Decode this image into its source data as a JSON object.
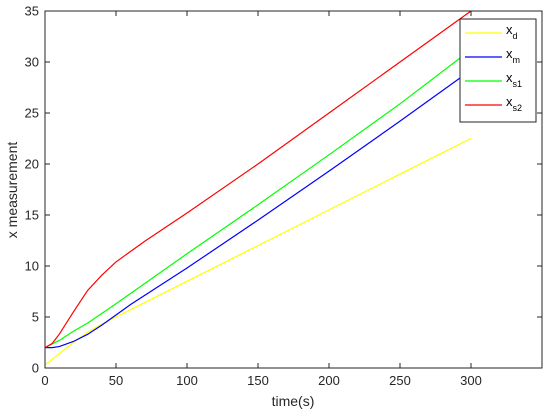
{
  "chart_data": {
    "type": "line",
    "xlabel": "time(s)",
    "ylabel": "x measurement",
    "xlim": [
      0,
      350
    ],
    "ylim": [
      0,
      35
    ],
    "xticks": [
      0,
      50,
      100,
      150,
      200,
      250,
      300
    ],
    "yticks": [
      0,
      5,
      10,
      15,
      20,
      25,
      30,
      35
    ],
    "grid": false,
    "legend_position": "top-right",
    "series": [
      {
        "name": "x_d",
        "label_main": "x",
        "label_sub": "d",
        "color": "#ffff00",
        "x": [
          0,
          10,
          20,
          30,
          40,
          50,
          60,
          80,
          100,
          150,
          200,
          250,
          300
        ],
        "y": [
          0.3,
          1.4,
          2.5,
          3.5,
          4.3,
          5.0,
          5.7,
          7.1,
          8.5,
          12.0,
          15.5,
          19.0,
          22.5
        ]
      },
      {
        "name": "x_m",
        "label_main": "x",
        "label_sub": "m",
        "color": "#0000ff",
        "x": [
          0,
          5,
          10,
          20,
          30,
          40,
          50,
          60,
          80,
          100,
          150,
          200,
          250,
          300
        ],
        "y": [
          2.0,
          2.0,
          2.1,
          2.6,
          3.3,
          4.2,
          5.2,
          6.2,
          8.0,
          9.8,
          14.5,
          19.3,
          24.2,
          29.2
        ]
      },
      {
        "name": "x_s1",
        "label_main": "x",
        "label_sub": "s1",
        "color": "#00ff00",
        "x": [
          0,
          10,
          20,
          30,
          50,
          100,
          150,
          200,
          250,
          300
        ],
        "y": [
          2.0,
          2.7,
          3.6,
          4.4,
          6.3,
          11.2,
          16.0,
          20.9,
          25.9,
          31.2
        ]
      },
      {
        "name": "x_s2",
        "label_main": "x",
        "label_sub": "s2",
        "color": "#ff0000",
        "x": [
          0,
          5,
          10,
          20,
          30,
          40,
          50,
          70,
          100,
          150,
          200,
          250,
          300
        ],
        "y": [
          2.0,
          2.4,
          3.3,
          5.5,
          7.6,
          9.1,
          10.4,
          12.4,
          15.2,
          20.0,
          25.0,
          30.0,
          35.0
        ]
      }
    ]
  }
}
